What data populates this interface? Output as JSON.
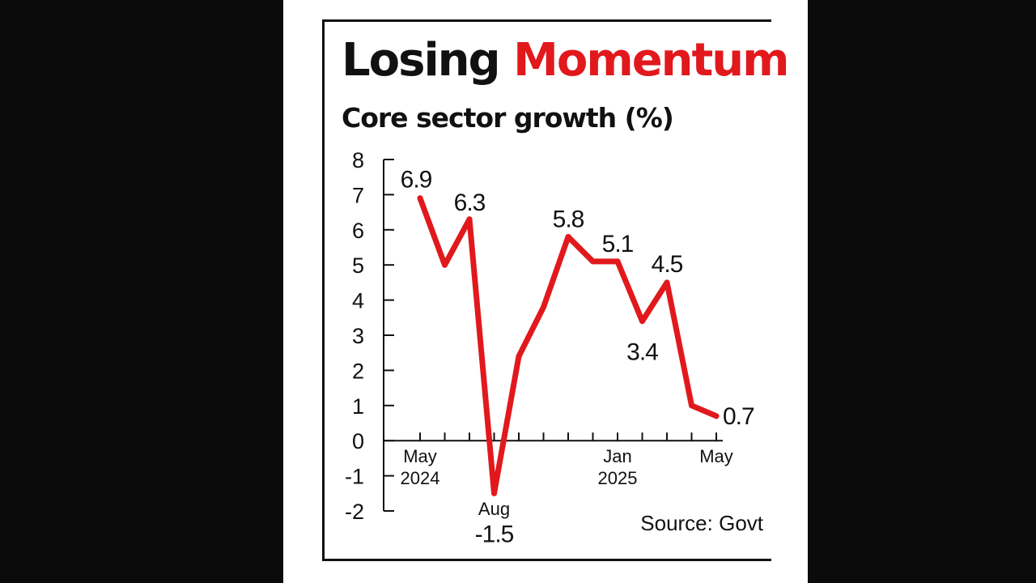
{
  "chart_data": {
    "type": "line",
    "title": "Losing Momentum",
    "title_parts": [
      {
        "text": "Losing ",
        "color": "#111111"
      },
      {
        "text": "Momentum",
        "color": "#e1191d"
      }
    ],
    "subtitle": "Core sector growth (%)",
    "source": "Source: Govt",
    "line_color": "#e1191d",
    "ylim": [
      -2,
      8
    ],
    "yticks": [
      "8",
      "7",
      "6",
      "5",
      "4",
      "3",
      "2",
      "1",
      "0",
      "-1",
      "-2"
    ],
    "x": [
      "May 2024",
      "Jun 2024",
      "Jul 2024",
      "Aug 2024",
      "Sep 2024",
      "Oct 2024",
      "Nov 2024",
      "Dec 2024",
      "Jan 2025",
      "Feb 2025",
      "Mar 2025",
      "Apr 2025",
      "May 2025"
    ],
    "values": [
      6.9,
      5.0,
      6.3,
      -1.5,
      2.4,
      3.8,
      5.8,
      5.1,
      5.1,
      3.4,
      4.5,
      1.0,
      0.7
    ],
    "xtick_labels": [
      {
        "index": 0,
        "lines": [
          "May",
          "2024"
        ]
      },
      {
        "index": 3,
        "lines": [
          "Aug"
        ]
      },
      {
        "index": 8,
        "lines": [
          "Jan",
          "2025"
        ]
      },
      {
        "index": 12,
        "lines": [
          "May"
        ]
      }
    ],
    "data_labels": [
      {
        "index": 0,
        "text": "6.9"
      },
      {
        "index": 2,
        "text": "6.3"
      },
      {
        "index": 3,
        "text": "-1.5"
      },
      {
        "index": 6,
        "text": "5.8"
      },
      {
        "index": 8,
        "text": "5.1"
      },
      {
        "index": 9,
        "text": "3.4"
      },
      {
        "index": 10,
        "text": "4.5"
      },
      {
        "index": 12,
        "text": "0.7"
      }
    ],
    "grid": false,
    "legend": "none"
  }
}
